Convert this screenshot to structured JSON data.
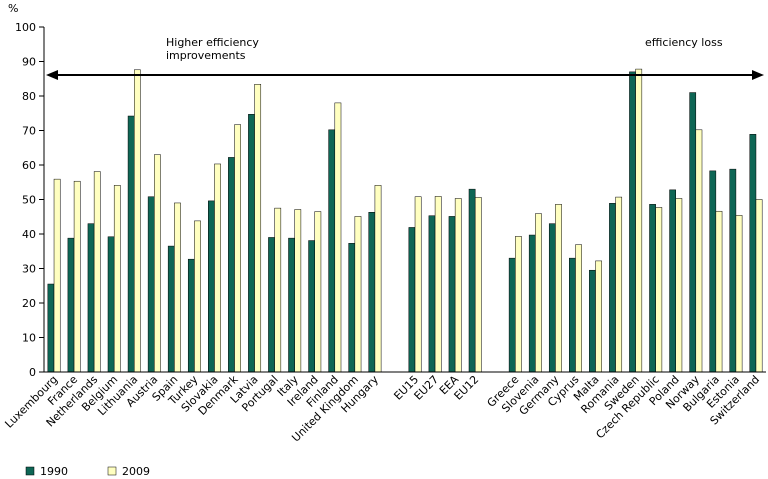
{
  "chart_data": {
    "type": "bar",
    "ylabel": "%",
    "ylim": [
      0,
      100
    ],
    "yticks": [
      0,
      10,
      20,
      30,
      40,
      50,
      60,
      70,
      80,
      90,
      100
    ],
    "grid": false,
    "legend_position": "bottom-left",
    "categories": [
      "Luxembourg",
      "France",
      "Netherlands",
      "Belgium",
      "Lithuania",
      "Austria",
      "Spain",
      "Turkey",
      "Slovakia",
      "Denmark",
      "Latvia",
      "Portugal",
      "Italy",
      "Ireland",
      "Finland",
      "United Kingdom",
      "Hungary",
      "",
      "EU15",
      "EU27",
      "EEA",
      "EU12",
      "",
      "Greece",
      "Slovenia",
      "Germany",
      "Cyprus",
      "Malta",
      "Romania",
      "Sweden",
      "Czech Republic",
      "Poland",
      "Norway",
      "Bulgaria",
      "Estonia",
      "Switzerland"
    ],
    "series": [
      {
        "name": "1990",
        "color": "#0e6655",
        "values": [
          25.5,
          38.8,
          43.0,
          39.2,
          74.2,
          50.8,
          36.5,
          32.7,
          49.6,
          62.2,
          74.7,
          39.0,
          38.8,
          38.1,
          70.2,
          37.3,
          46.3,
          null,
          41.9,
          45.3,
          45.1,
          53.0,
          null,
          33.0,
          39.7,
          43.0,
          33.0,
          29.5,
          48.9,
          87.0,
          48.6,
          52.8,
          81.0,
          58.3,
          58.8,
          68.9
        ]
      },
      {
        "name": "2009",
        "color": "#ffffc0",
        "values": [
          55.9,
          55.3,
          58.1,
          54.1,
          87.6,
          63.0,
          49.0,
          43.8,
          60.3,
          71.7,
          83.4,
          47.5,
          47.1,
          46.5,
          78.0,
          45.1,
          54.1,
          null,
          50.8,
          50.9,
          50.3,
          50.6,
          null,
          39.3,
          45.9,
          48.6,
          36.9,
          32.2,
          50.7,
          87.8,
          47.7,
          50.3,
          70.2,
          46.6,
          45.4,
          50.0
        ]
      }
    ],
    "annotations": {
      "left": [
        "Higher efficiency",
        "improvements"
      ],
      "right": "efficiency loss"
    }
  }
}
